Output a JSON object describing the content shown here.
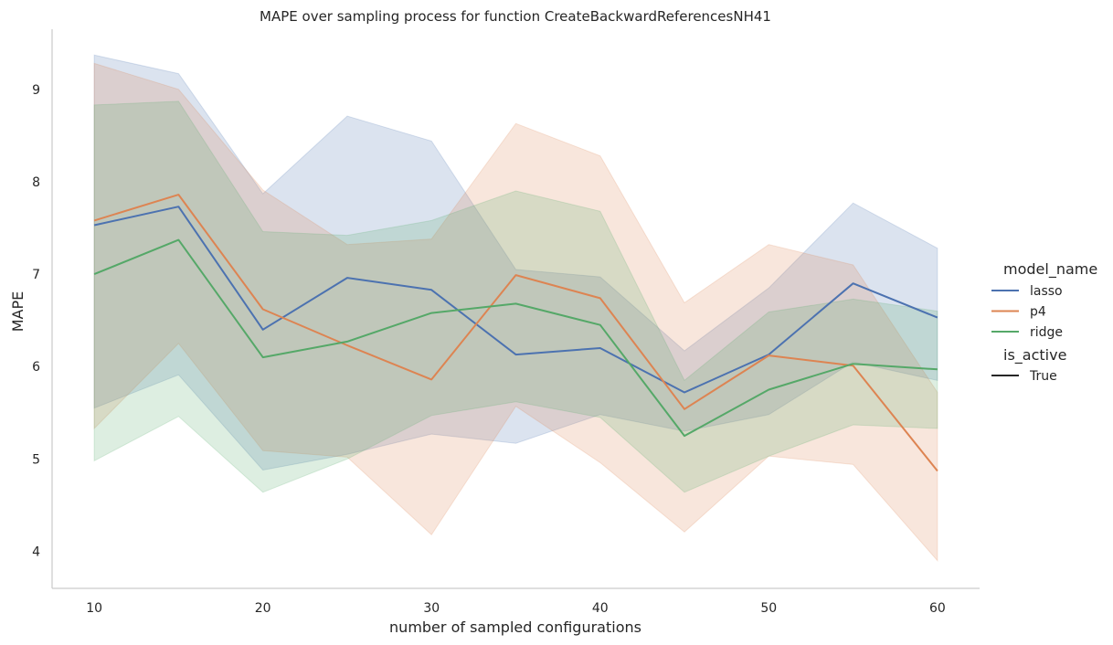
{
  "chart_data": {
    "type": "line",
    "title": "MAPE over sampling process for function CreateBackwardReferencesNH41",
    "xlabel": "number of sampled configurations",
    "ylabel": "MAPE",
    "xlim": [
      7.5,
      62.5
    ],
    "ylim": [
      3.6,
      9.65
    ],
    "x_ticks": [
      10,
      20,
      30,
      40,
      50,
      60
    ],
    "y_ticks": [
      4,
      5,
      6,
      7,
      8,
      9
    ],
    "grid": false,
    "legend": {
      "position": "right",
      "hue_title": "model_name",
      "style_title": "is_active",
      "style_entries": [
        "True"
      ]
    },
    "x": [
      10,
      15,
      20,
      25,
      30,
      35,
      40,
      45,
      50,
      55,
      60
    ],
    "series": [
      {
        "name": "lasso",
        "color": "#4c72b0",
        "values": [
          7.53,
          7.73,
          6.4,
          6.96,
          6.83,
          6.13,
          6.2,
          5.72,
          6.13,
          6.9,
          6.53
        ],
        "ci_low": [
          5.55,
          5.91,
          4.88,
          5.05,
          5.27,
          5.17,
          5.48,
          5.3,
          5.48,
          6.05,
          5.85
        ],
        "ci_high": [
          9.37,
          9.17,
          7.87,
          8.71,
          8.44,
          7.05,
          6.97,
          6.17,
          6.85,
          7.77,
          7.28
        ]
      },
      {
        "name": "p4",
        "color": "#dd8452",
        "values": [
          7.58,
          7.86,
          6.62,
          6.23,
          5.86,
          6.99,
          6.74,
          5.54,
          6.12,
          6.01,
          4.87
        ],
        "ci_low": [
          5.33,
          6.25,
          5.09,
          5.02,
          4.18,
          5.57,
          4.96,
          4.21,
          5.03,
          4.94,
          3.9
        ],
        "ci_high": [
          9.28,
          9.0,
          7.91,
          7.32,
          7.38,
          8.63,
          8.28,
          6.69,
          7.32,
          7.1,
          5.72
        ]
      },
      {
        "name": "ridge",
        "color": "#55a868",
        "values": [
          7.0,
          7.37,
          6.1,
          6.27,
          6.58,
          6.68,
          6.45,
          5.25,
          5.75,
          6.03,
          5.97
        ],
        "ci_low": [
          4.98,
          5.46,
          4.64,
          5.0,
          5.47,
          5.62,
          5.45,
          4.64,
          5.03,
          5.37,
          5.33
        ],
        "ci_high": [
          8.83,
          8.87,
          7.46,
          7.42,
          7.58,
          7.9,
          7.68,
          5.85,
          6.59,
          6.73,
          6.6
        ]
      }
    ]
  }
}
